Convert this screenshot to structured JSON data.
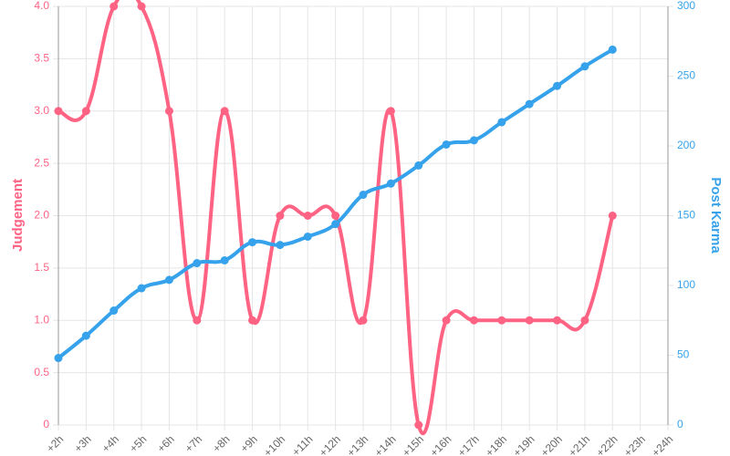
{
  "chart_data": {
    "type": "line",
    "categories": [
      "+2h",
      "+3h",
      "+4h",
      "+5h",
      "+6h",
      "+7h",
      "+8h",
      "+9h",
      "+10h",
      "+11h",
      "+12h",
      "+13h",
      "+14h",
      "+15h",
      "+16h",
      "+17h",
      "+18h",
      "+19h",
      "+20h",
      "+21h",
      "+22h",
      "+23h",
      "+24h"
    ],
    "series": [
      {
        "name": "Judgement",
        "color": "#ff6384",
        "axis": "y",
        "values": [
          3,
          3,
          4,
          4,
          3,
          1,
          3,
          1,
          2,
          2,
          2,
          1,
          3,
          0,
          1,
          1,
          1,
          1,
          1,
          1,
          2,
          null,
          null
        ]
      },
      {
        "name": "Post Karma",
        "color": "#36a2eb",
        "axis": "y2",
        "values": [
          48,
          64,
          82,
          98,
          104,
          116,
          118,
          131,
          129,
          135,
          144,
          165,
          173,
          186,
          201,
          204,
          217,
          230,
          243,
          257,
          269,
          null,
          null
        ]
      }
    ],
    "ylabel": "Judgement",
    "y2label": "Post Karma",
    "ylim": [
      0,
      4
    ],
    "yticks": [
      0,
      0.5,
      {
        "value": 1,
        "label": "1.0"
      },
      1.5,
      {
        "value": 2,
        "label": "2.0"
      },
      2.5,
      {
        "value": 3,
        "label": "3.0"
      },
      3.5,
      {
        "value": 4,
        "label": "4.0"
      }
    ],
    "y2lim": [
      0,
      300
    ],
    "y2ticks": [
      0,
      50,
      100,
      150,
      200,
      250,
      300
    ],
    "grid": true
  }
}
